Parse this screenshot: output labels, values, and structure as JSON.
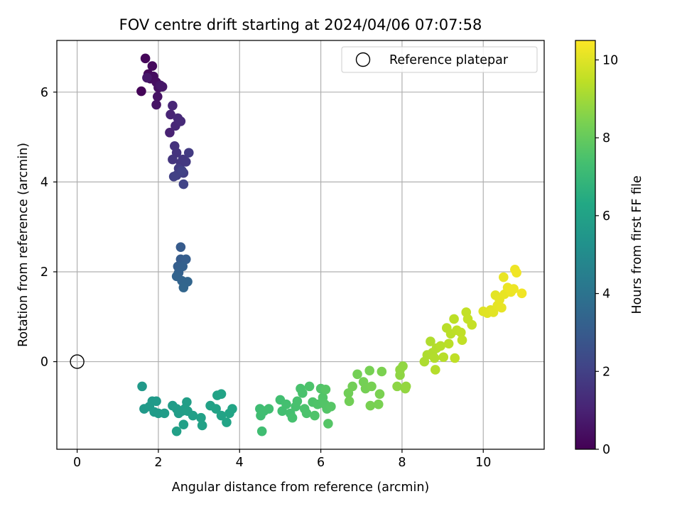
{
  "chart_data": {
    "type": "scatter",
    "title": "FOV centre drift starting at 2024/04/06 07:07:58",
    "xlabel": "Angular distance from reference (arcmin)",
    "ylabel": "Rotation from reference (arcmin)",
    "xlim": [
      -0.5,
      11.5
    ],
    "ylim": [
      -1.95,
      7.15
    ],
    "xticks": [
      "0",
      "2",
      "4",
      "6",
      "8",
      "10"
    ],
    "yticks": [
      "0",
      "2",
      "4",
      "6"
    ],
    "grid": true,
    "legend": {
      "placement": "top-right",
      "entries": [
        "Reference platepar"
      ]
    },
    "reference_point": {
      "x": 0,
      "y": 0,
      "label": "Reference platepar"
    },
    "colorbar": {
      "label": "Hours from first FF file",
      "range": [
        0,
        10.5
      ],
      "ticks": [
        "0",
        "2",
        "4",
        "6",
        "8",
        "10"
      ],
      "colormap": "viridis"
    },
    "points": [
      {
        "x": 1.58,
        "y": 6.02,
        "hours": 0.1
      },
      {
        "x": 1.68,
        "y": 6.75,
        "hours": 0.15
      },
      {
        "x": 1.75,
        "y": 6.4,
        "hours": 0.2
      },
      {
        "x": 1.85,
        "y": 6.58,
        "hours": 0.25
      },
      {
        "x": 1.8,
        "y": 6.3,
        "hours": 0.3
      },
      {
        "x": 1.88,
        "y": 6.35,
        "hours": 0.35
      },
      {
        "x": 1.95,
        "y": 6.22,
        "hours": 0.4
      },
      {
        "x": 2.0,
        "y": 6.1,
        "hours": 0.45
      },
      {
        "x": 1.98,
        "y": 5.9,
        "hours": 0.5
      },
      {
        "x": 1.95,
        "y": 5.72,
        "hours": 0.55
      },
      {
        "x": 2.05,
        "y": 6.15,
        "hours": 0.6
      },
      {
        "x": 2.1,
        "y": 6.12,
        "hours": 0.65
      },
      {
        "x": 1.72,
        "y": 6.32,
        "hours": 0.7
      },
      {
        "x": 2.28,
        "y": 5.1,
        "hours": 1.0
      },
      {
        "x": 2.3,
        "y": 5.5,
        "hours": 1.05
      },
      {
        "x": 2.35,
        "y": 5.7,
        "hours": 1.1
      },
      {
        "x": 2.42,
        "y": 5.25,
        "hours": 1.15
      },
      {
        "x": 2.48,
        "y": 5.42,
        "hours": 1.2
      },
      {
        "x": 2.55,
        "y": 5.35,
        "hours": 1.25
      },
      {
        "x": 2.4,
        "y": 4.8,
        "hours": 1.5
      },
      {
        "x": 2.45,
        "y": 4.65,
        "hours": 1.55
      },
      {
        "x": 2.35,
        "y": 4.5,
        "hours": 1.6
      },
      {
        "x": 2.55,
        "y": 4.42,
        "hours": 1.65
      },
      {
        "x": 2.6,
        "y": 4.5,
        "hours": 1.7
      },
      {
        "x": 2.68,
        "y": 4.45,
        "hours": 1.75
      },
      {
        "x": 2.75,
        "y": 4.65,
        "hours": 1.8
      },
      {
        "x": 2.5,
        "y": 4.3,
        "hours": 1.85
      },
      {
        "x": 2.62,
        "y": 4.2,
        "hours": 1.9
      },
      {
        "x": 2.45,
        "y": 4.15,
        "hours": 1.95
      },
      {
        "x": 2.38,
        "y": 4.12,
        "hours": 2.0
      },
      {
        "x": 2.58,
        "y": 4.25,
        "hours": 2.05
      },
      {
        "x": 2.62,
        "y": 3.95,
        "hours": 2.1
      },
      {
        "x": 2.55,
        "y": 2.55,
        "hours": 3.0
      },
      {
        "x": 2.55,
        "y": 2.28,
        "hours": 3.05
      },
      {
        "x": 2.68,
        "y": 2.28,
        "hours": 3.1
      },
      {
        "x": 2.48,
        "y": 2.12,
        "hours": 3.15
      },
      {
        "x": 2.6,
        "y": 2.12,
        "hours": 3.2
      },
      {
        "x": 2.5,
        "y": 1.98,
        "hours": 3.25
      },
      {
        "x": 2.45,
        "y": 1.9,
        "hours": 3.3
      },
      {
        "x": 2.58,
        "y": 1.8,
        "hours": 3.35
      },
      {
        "x": 2.72,
        "y": 1.78,
        "hours": 3.4
      },
      {
        "x": 2.62,
        "y": 1.65,
        "hours": 3.45
      },
      {
        "x": 1.6,
        "y": -0.55,
        "hours": 5.6
      },
      {
        "x": 1.65,
        "y": -1.05,
        "hours": 5.62
      },
      {
        "x": 1.78,
        "y": -1.0,
        "hours": 5.64
      },
      {
        "x": 1.85,
        "y": -0.88,
        "hours": 5.66
      },
      {
        "x": 1.95,
        "y": -0.88,
        "hours": 5.68
      },
      {
        "x": 1.9,
        "y": -1.12,
        "hours": 5.7
      },
      {
        "x": 2.0,
        "y": -1.15,
        "hours": 5.72
      },
      {
        "x": 2.15,
        "y": -1.15,
        "hours": 5.74
      },
      {
        "x": 2.35,
        "y": -0.98,
        "hours": 5.76
      },
      {
        "x": 2.45,
        "y": -1.05,
        "hours": 5.78
      },
      {
        "x": 2.5,
        "y": -1.15,
        "hours": 5.8
      },
      {
        "x": 2.58,
        "y": -1.1,
        "hours": 5.82
      },
      {
        "x": 2.65,
        "y": -1.05,
        "hours": 5.84
      },
      {
        "x": 2.7,
        "y": -0.9,
        "hours": 5.86
      },
      {
        "x": 2.72,
        "y": -1.1,
        "hours": 5.88
      },
      {
        "x": 2.85,
        "y": -1.2,
        "hours": 5.9
      },
      {
        "x": 2.62,
        "y": -1.4,
        "hours": 5.92
      },
      {
        "x": 2.45,
        "y": -1.55,
        "hours": 5.94
      },
      {
        "x": 3.05,
        "y": -1.25,
        "hours": 5.96
      },
      {
        "x": 3.08,
        "y": -1.42,
        "hours": 5.98
      },
      {
        "x": 3.28,
        "y": -0.98,
        "hours": 6.0
      },
      {
        "x": 3.42,
        "y": -1.05,
        "hours": 6.02
      },
      {
        "x": 3.45,
        "y": -0.75,
        "hours": 6.04
      },
      {
        "x": 3.55,
        "y": -0.72,
        "hours": 6.06
      },
      {
        "x": 3.55,
        "y": -1.2,
        "hours": 6.08
      },
      {
        "x": 3.68,
        "y": -1.35,
        "hours": 6.1
      },
      {
        "x": 3.75,
        "y": -1.15,
        "hours": 6.12
      },
      {
        "x": 3.82,
        "y": -1.05,
        "hours": 6.14
      },
      {
        "x": 4.5,
        "y": -1.05,
        "hours": 7.2
      },
      {
        "x": 4.52,
        "y": -1.2,
        "hours": 7.22
      },
      {
        "x": 4.55,
        "y": -1.55,
        "hours": 7.24
      },
      {
        "x": 4.6,
        "y": -1.1,
        "hours": 7.26
      },
      {
        "x": 4.72,
        "y": -1.05,
        "hours": 7.28
      },
      {
        "x": 5.0,
        "y": -0.85,
        "hours": 7.3
      },
      {
        "x": 5.05,
        "y": -1.1,
        "hours": 7.32
      },
      {
        "x": 5.15,
        "y": -0.95,
        "hours": 7.34
      },
      {
        "x": 5.25,
        "y": -1.15,
        "hours": 7.36
      },
      {
        "x": 5.3,
        "y": -1.25,
        "hours": 7.38
      },
      {
        "x": 5.38,
        "y": -1.0,
        "hours": 7.4
      },
      {
        "x": 5.42,
        "y": -0.88,
        "hours": 7.42
      },
      {
        "x": 5.5,
        "y": -0.6,
        "hours": 7.44
      },
      {
        "x": 5.55,
        "y": -0.7,
        "hours": 7.46
      },
      {
        "x": 5.6,
        "y": -1.05,
        "hours": 7.48
      },
      {
        "x": 5.65,
        "y": -1.15,
        "hours": 7.5
      },
      {
        "x": 5.72,
        "y": -0.55,
        "hours": 7.52
      },
      {
        "x": 5.8,
        "y": -0.9,
        "hours": 7.54
      },
      {
        "x": 5.85,
        "y": -1.2,
        "hours": 7.56
      },
      {
        "x": 5.92,
        "y": -0.95,
        "hours": 7.58
      },
      {
        "x": 6.0,
        "y": -0.6,
        "hours": 7.6
      },
      {
        "x": 6.05,
        "y": -0.8,
        "hours": 7.62
      },
      {
        "x": 6.1,
        "y": -0.95,
        "hours": 7.64
      },
      {
        "x": 6.15,
        "y": -1.05,
        "hours": 7.66
      },
      {
        "x": 6.18,
        "y": -1.38,
        "hours": 7.68
      },
      {
        "x": 6.25,
        "y": -1.0,
        "hours": 7.7
      },
      {
        "x": 6.12,
        "y": -0.62,
        "hours": 7.72
      },
      {
        "x": 6.68,
        "y": -0.7,
        "hours": 8.2
      },
      {
        "x": 6.7,
        "y": -0.88,
        "hours": 8.22
      },
      {
        "x": 6.78,
        "y": -0.55,
        "hours": 8.24
      },
      {
        "x": 6.9,
        "y": -0.28,
        "hours": 8.26
      },
      {
        "x": 7.05,
        "y": -0.45,
        "hours": 8.28
      },
      {
        "x": 7.1,
        "y": -0.6,
        "hours": 8.3
      },
      {
        "x": 7.2,
        "y": -0.2,
        "hours": 8.32
      },
      {
        "x": 7.25,
        "y": -0.55,
        "hours": 8.34
      },
      {
        "x": 7.22,
        "y": -0.98,
        "hours": 8.36
      },
      {
        "x": 7.42,
        "y": -0.95,
        "hours": 8.38
      },
      {
        "x": 7.45,
        "y": -0.72,
        "hours": 8.4
      },
      {
        "x": 7.5,
        "y": -0.22,
        "hours": 8.42
      },
      {
        "x": 7.88,
        "y": -0.55,
        "hours": 8.7
      },
      {
        "x": 7.95,
        "y": -0.3,
        "hours": 8.72
      },
      {
        "x": 7.95,
        "y": -0.18,
        "hours": 8.74
      },
      {
        "x": 8.02,
        "y": -0.1,
        "hours": 8.76
      },
      {
        "x": 8.08,
        "y": -0.6,
        "hours": 8.78
      },
      {
        "x": 8.1,
        "y": -0.55,
        "hours": 8.8
      },
      {
        "x": 8.55,
        "y": 0.0,
        "hours": 9.2
      },
      {
        "x": 8.62,
        "y": 0.15,
        "hours": 9.22
      },
      {
        "x": 8.7,
        "y": 0.45,
        "hours": 9.24
      },
      {
        "x": 8.75,
        "y": 0.2,
        "hours": 9.26
      },
      {
        "x": 8.8,
        "y": 0.08,
        "hours": 9.28
      },
      {
        "x": 8.85,
        "y": 0.3,
        "hours": 9.3
      },
      {
        "x": 8.82,
        "y": -0.18,
        "hours": 9.32
      },
      {
        "x": 8.95,
        "y": 0.35,
        "hours": 9.34
      },
      {
        "x": 9.02,
        "y": 0.1,
        "hours": 9.36
      },
      {
        "x": 9.1,
        "y": 0.75,
        "hours": 9.38
      },
      {
        "x": 9.15,
        "y": 0.4,
        "hours": 9.4
      },
      {
        "x": 9.2,
        "y": 0.62,
        "hours": 9.42
      },
      {
        "x": 9.28,
        "y": 0.95,
        "hours": 9.44
      },
      {
        "x": 9.35,
        "y": 0.7,
        "hours": 9.46
      },
      {
        "x": 9.3,
        "y": 0.08,
        "hours": 9.48
      },
      {
        "x": 9.45,
        "y": 0.65,
        "hours": 9.5
      },
      {
        "x": 9.48,
        "y": 0.48,
        "hours": 9.52
      },
      {
        "x": 9.58,
        "y": 1.1,
        "hours": 9.54
      },
      {
        "x": 9.62,
        "y": 0.95,
        "hours": 9.56
      },
      {
        "x": 9.72,
        "y": 0.82,
        "hours": 9.58
      },
      {
        "x": 10.0,
        "y": 1.12,
        "hours": 10.0
      },
      {
        "x": 10.1,
        "y": 1.08,
        "hours": 10.02
      },
      {
        "x": 10.18,
        "y": 1.15,
        "hours": 10.04
      },
      {
        "x": 10.25,
        "y": 1.1,
        "hours": 10.06
      },
      {
        "x": 10.3,
        "y": 1.48,
        "hours": 10.08
      },
      {
        "x": 10.35,
        "y": 1.25,
        "hours": 10.1
      },
      {
        "x": 10.4,
        "y": 1.38,
        "hours": 10.12
      },
      {
        "x": 10.45,
        "y": 1.2,
        "hours": 10.14
      },
      {
        "x": 10.52,
        "y": 1.5,
        "hours": 10.16
      },
      {
        "x": 10.5,
        "y": 1.88,
        "hours": 10.18
      },
      {
        "x": 10.6,
        "y": 1.65,
        "hours": 10.2
      },
      {
        "x": 10.68,
        "y": 1.55,
        "hours": 10.22
      },
      {
        "x": 10.75,
        "y": 1.62,
        "hours": 10.24
      },
      {
        "x": 10.78,
        "y": 2.05,
        "hours": 10.26
      },
      {
        "x": 10.82,
        "y": 1.98,
        "hours": 10.28
      },
      {
        "x": 10.95,
        "y": 1.52,
        "hours": 10.3
      }
    ]
  }
}
